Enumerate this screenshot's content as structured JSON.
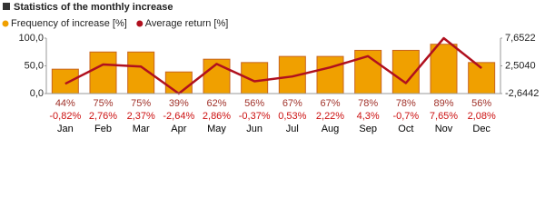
{
  "chart_data": {
    "type": "bar-line",
    "title": "Statistics of the monthly increase",
    "categories": [
      "Jan",
      "Feb",
      "Mar",
      "Apr",
      "May",
      "Jun",
      "Jul",
      "Aug",
      "Sep",
      "Oct",
      "Nov",
      "Dec"
    ],
    "series": [
      {
        "name": "Frequency of increase [%]",
        "color": "#f0a000",
        "type": "bar",
        "values": [
          44,
          75,
          75,
          39,
          62,
          56,
          67,
          67,
          78,
          78,
          89,
          56
        ],
        "value_labels": [
          "44%",
          "75%",
          "75%",
          "39%",
          "62%",
          "56%",
          "67%",
          "67%",
          "78%",
          "78%",
          "89%",
          "56%"
        ]
      },
      {
        "name": "Average return [%]",
        "color": "#b0101e",
        "type": "line",
        "axis": "y2",
        "values": [
          -0.82,
          2.76,
          2.37,
          -2.64,
          2.86,
          -0.37,
          0.53,
          2.22,
          4.3,
          -0.7,
          7.65,
          2.08
        ],
        "value_labels": [
          "-0,82%",
          "2,76%",
          "2,37%",
          "-2,64%",
          "2,86%",
          "-0,37%",
          "0,53%",
          "2,22%",
          "4,3%",
          "-0,7%",
          "7,65%",
          "2,08%"
        ]
      }
    ],
    "ylim": [
      0,
      100
    ],
    "yticks": [
      {
        "value": 0,
        "label": "0,0"
      },
      {
        "value": 50,
        "label": "50,0"
      },
      {
        "value": 100,
        "label": "100,0"
      }
    ],
    "y2lim": [
      -2.6442,
      7.6522
    ],
    "y2ticks": [
      {
        "value": -2.6442,
        "label": "-2,6442"
      },
      {
        "value": 2.504,
        "label": "2,5040"
      },
      {
        "value": 7.6522,
        "label": "7,6522"
      }
    ]
  }
}
